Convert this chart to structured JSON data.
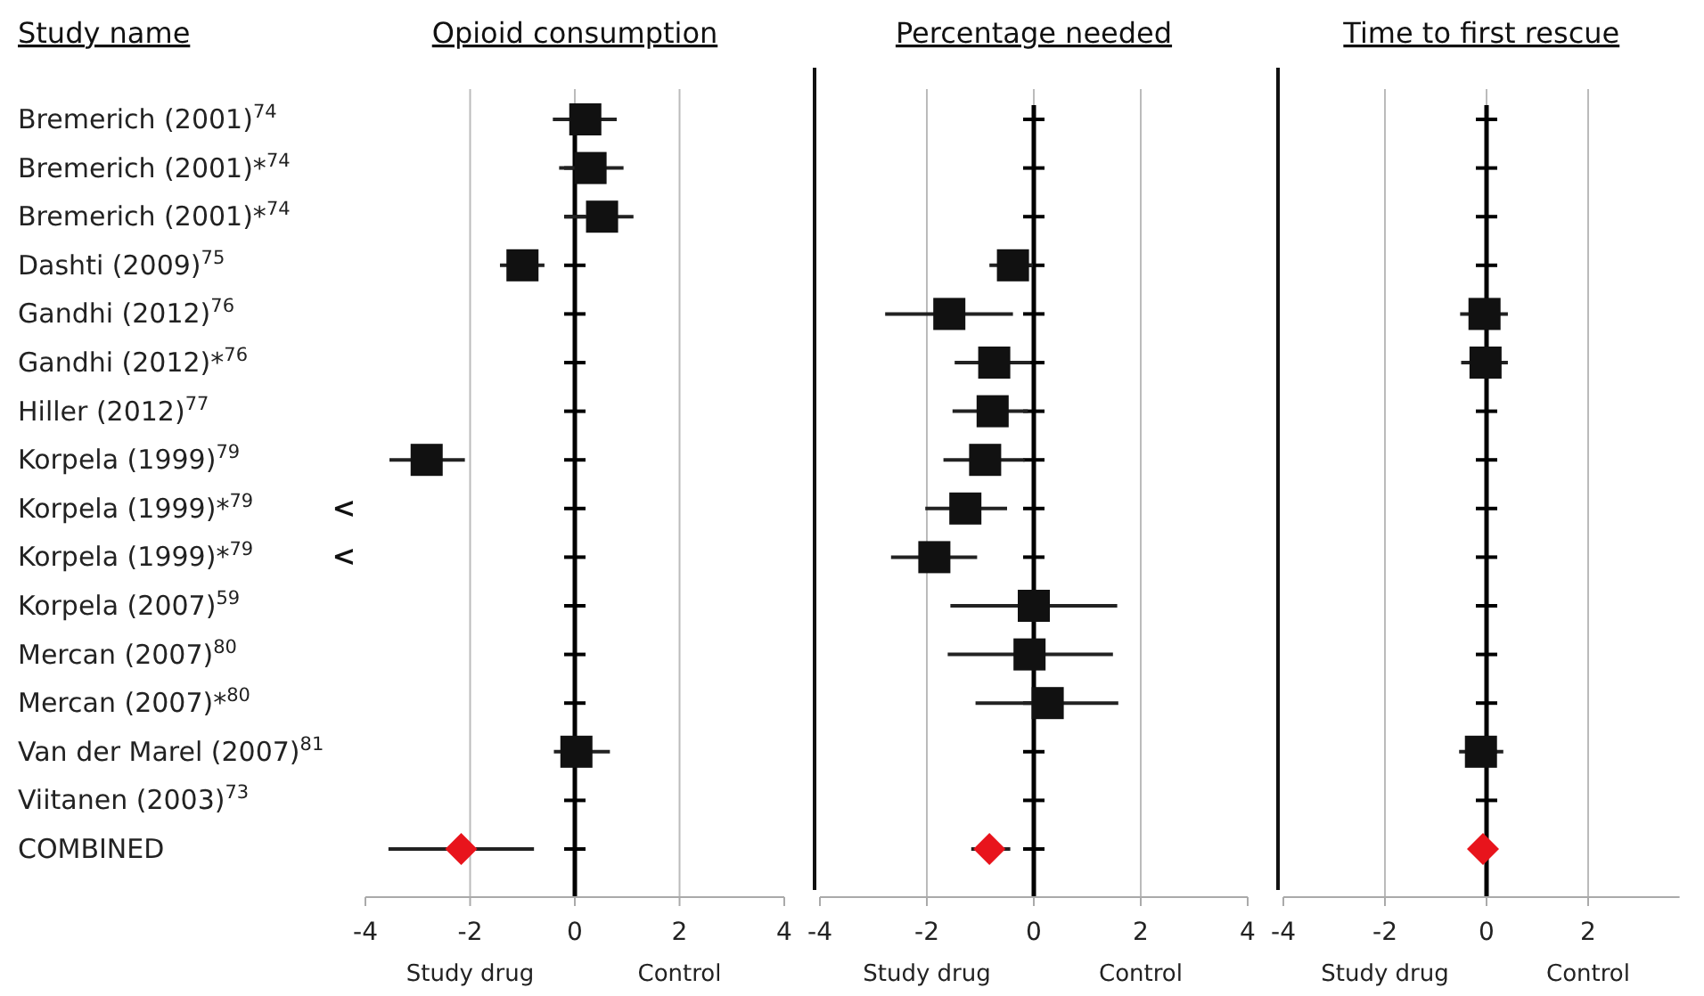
{
  "chart_data": [
    {
      "type": "scatter",
      "orientation": "horizontal",
      "title": "Opioid consumption",
      "ylabel": "Study name",
      "categories": [
        "Bremerich (2001)$^{74}$",
        "Bremerich (2001)*$^{74}$",
        "Bremerich (2001)*$^{74}$",
        "Dashti (2009)$^{75}$",
        "Gandhi (2012)$^{76}$",
        "Gandhi (2012)*$^{76}$",
        "Hiller (2012)$^{77}$",
        "Korpela (1999)$^{79}$",
        "Korpela (1999)*$^{79}$",
        "Korpela (1999)*$^{79}$",
        "Korpela (2007)$^{59}$",
        "Mercan (2007)$^{80}$",
        "Mercan (2007)*$^{80}$",
        "Van der Marel (2007)$^{81}$",
        "Viitanen (2003)$^{73}$",
        "COMBINED"
      ],
      "series": [
        {
          "color": "#111111",
          "marker": "square",
          "values": [
            0.2,
            0.3,
            0.52,
            -1.0,
            null,
            null,
            null,
            -2.83,
            null,
            null,
            null,
            null,
            null,
            0.03,
            null,
            null
          ],
          "errors": [
            [
              -0.42,
              0.8
            ],
            [
              -0.3,
              0.93
            ],
            [
              -0.2,
              1.12
            ],
            [
              -1.43,
              -0.58
            ],
            null,
            null,
            null,
            [
              -3.54,
              -2.1
            ],
            null,
            null,
            null,
            null,
            null,
            [
              -0.4,
              0.67
            ],
            null,
            null
          ],
          "value_labels": [
            null,
            null,
            null,
            null,
            null,
            null,
            null,
            null,
            "<",
            "<",
            null,
            null,
            null,
            null,
            null,
            null
          ]
        },
        {
          "color": "#e8141c",
          "marker": "diamond",
          "values": [
            null,
            null,
            null,
            null,
            null,
            null,
            null,
            null,
            null,
            null,
            null,
            null,
            null,
            null,
            null,
            -2.17
          ],
          "errors": [
            null,
            null,
            null,
            null,
            null,
            null,
            null,
            null,
            null,
            null,
            null,
            null,
            null,
            null,
            null,
            [
              -3.56,
              -0.78
            ]
          ]
        }
      ],
      "xlim": [
        -4,
        4
      ],
      "xticks": [
        -4,
        -2,
        0,
        2,
        4
      ],
      "grid": "x",
      "ref_lines": [
        {
          "axis": "x",
          "value": 0,
          "color": "#000000"
        }
      ],
      "annotations": [
        "Study drug",
        "Control"
      ]
    },
    {
      "type": "scatter",
      "orientation": "horizontal",
      "title": "Percentage needed",
      "tick_labels": "x",
      "categories": [
        null,
        null,
        null,
        null,
        null,
        null,
        null,
        null,
        null,
        null,
        null,
        null,
        null,
        null,
        null,
        null
      ],
      "series": [
        {
          "color": "#111111",
          "marker": "square",
          "values": [
            null,
            null,
            null,
            -0.39,
            -1.58,
            -0.74,
            -0.77,
            -0.91,
            -1.28,
            -1.86,
            0,
            -0.08,
            0.26,
            null,
            null,
            null
          ],
          "errors": [
            null,
            null,
            null,
            [
              -0.83,
              -0.02
            ],
            [
              -2.78,
              -0.39
            ],
            [
              -1.48,
              -0.06
            ],
            [
              -1.52,
              -0.11
            ],
            [
              -1.69,
              -0.17
            ],
            [
              -2.03,
              -0.5
            ],
            [
              -2.67,
              -1.06
            ],
            [
              -1.56,
              1.56
            ],
            [
              -1.61,
              1.48
            ],
            [
              -1.09,
              1.58
            ],
            null,
            null,
            null
          ]
        },
        {
          "color": "#e8141c",
          "marker": "diamond",
          "values": [
            null,
            null,
            null,
            null,
            null,
            null,
            null,
            null,
            null,
            null,
            null,
            null,
            null,
            null,
            null,
            -0.83
          ],
          "errors": [
            null,
            null,
            null,
            null,
            null,
            null,
            null,
            null,
            null,
            null,
            null,
            null,
            null,
            null,
            null,
            [
              -1.17,
              -0.44
            ]
          ]
        }
      ],
      "xlim": [
        -4,
        4
      ],
      "xticks": [
        -4,
        -2,
        0,
        2,
        4
      ],
      "grid": "x",
      "ref_lines": [
        {
          "axis": "x",
          "value": 0,
          "color": "#000000"
        }
      ],
      "annotations": [
        "Study drug",
        "Control"
      ]
    },
    {
      "type": "scatter",
      "orientation": "horizontal",
      "title": "Time to first rescue",
      "tick_labels": "x",
      "categories": [
        null,
        null,
        null,
        null,
        null,
        null,
        null,
        null,
        null,
        null,
        null,
        null,
        null,
        null,
        null,
        null
      ],
      "series": [
        {
          "color": "#111111",
          "marker": "square",
          "values": [
            null,
            null,
            null,
            null,
            -0.04,
            -0.02,
            null,
            null,
            null,
            null,
            null,
            null,
            null,
            -0.11,
            null,
            null
          ],
          "errors": [
            null,
            null,
            null,
            null,
            [
              -0.52,
              0.42
            ],
            [
              -0.5,
              0.42
            ],
            null,
            null,
            null,
            null,
            null,
            null,
            null,
            [
              -0.54,
              0.33
            ],
            null,
            null
          ]
        },
        {
          "color": "#e8141c",
          "marker": "diamond",
          "values": [
            null,
            null,
            null,
            null,
            null,
            null,
            null,
            null,
            null,
            null,
            null,
            null,
            null,
            null,
            null,
            -0.07
          ]
        }
      ],
      "xlim": [
        -4,
        3.8
      ],
      "xticks": [
        -4,
        -2,
        0,
        2
      ],
      "grid": "x",
      "ref_lines": [
        {
          "axis": "x",
          "value": 0,
          "color": "#000000"
        }
      ],
      "annotations": [
        "Study drug",
        "Control"
      ]
    }
  ]
}
